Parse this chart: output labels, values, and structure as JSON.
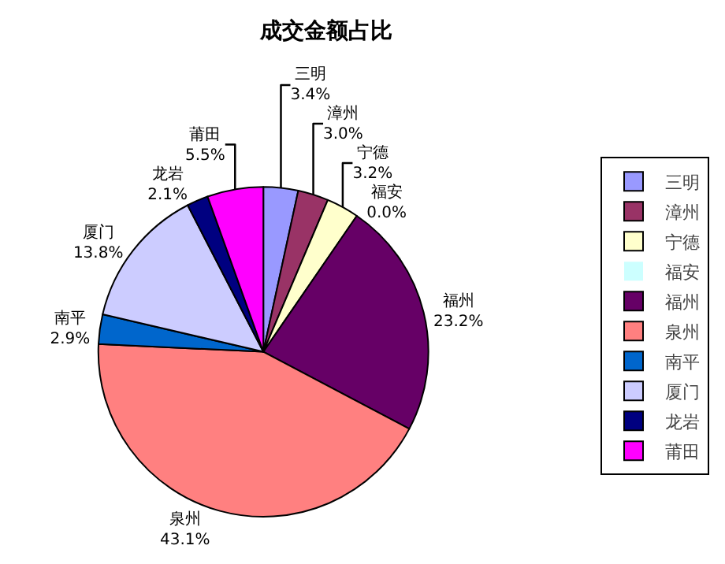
{
  "chart_data": {
    "type": "pie",
    "title": "成交金额占比",
    "categories": [
      "三明",
      "漳州",
      "宁德",
      "福安",
      "福州",
      "泉州",
      "南平",
      "厦门",
      "龙岩",
      "莆田"
    ],
    "values": [
      3.4,
      3.0,
      3.2,
      0.0,
      23.2,
      43.1,
      2.9,
      13.8,
      2.1,
      5.5
    ],
    "value_labels": [
      "3.4%",
      "3.0%",
      "3.2%",
      "0.0%",
      "23.2%",
      "43.1%",
      "2.9%",
      "13.8%",
      "2.1%",
      "5.5%"
    ],
    "colors": [
      "#9999ff",
      "#993366",
      "#ffffcc",
      "#ccffff",
      "#660066",
      "#ff8080",
      "#0066cc",
      "#ccccff",
      "#000080",
      "#ff00ff"
    ],
    "legend": "right"
  }
}
